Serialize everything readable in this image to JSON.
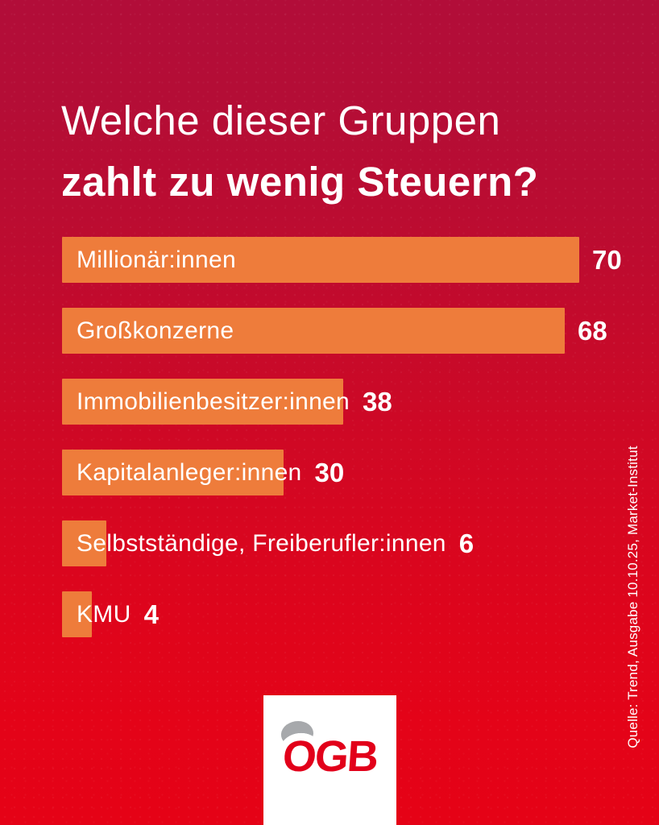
{
  "title": {
    "line1": "Welche dieser Gruppen",
    "line2": "zahlt zu wenig Steuern?"
  },
  "chart_data": {
    "type": "bar",
    "orientation": "horizontal",
    "title": "Welche dieser Gruppen zahlt zu wenig Steuern?",
    "categories": [
      "Millionär:innen",
      "Großkonzerne",
      "Immobilienbesitzer:innen",
      "Kapitalanleger:innen",
      "Selbstständige, Freiberufler:innen",
      "KMU"
    ],
    "values": [
      70,
      68,
      38,
      30,
      6,
      4
    ],
    "value_labels": [
      "70",
      "68",
      "38",
      "30",
      "6",
      "4"
    ],
    "xlim": [
      0,
      70
    ],
    "grid": false,
    "legend": false,
    "bar_color": "#EE7C3B",
    "label_color": "#FFFFFF"
  },
  "source_note": "Quelle: Trend, Ausgabe 10.10.25, Market-Institut",
  "logo": {
    "text": "ÖGB",
    "display_base": "OGB",
    "color": "#E2001A"
  },
  "colors": {
    "background_top": "#B20D39",
    "background_bottom": "#E50216",
    "bar": "#EE7C3B",
    "text": "#FFFFFF",
    "logo_red": "#E2001A",
    "logo_box": "#FFFFFF",
    "umlaut_swoosh": "#A7A9AC"
  }
}
